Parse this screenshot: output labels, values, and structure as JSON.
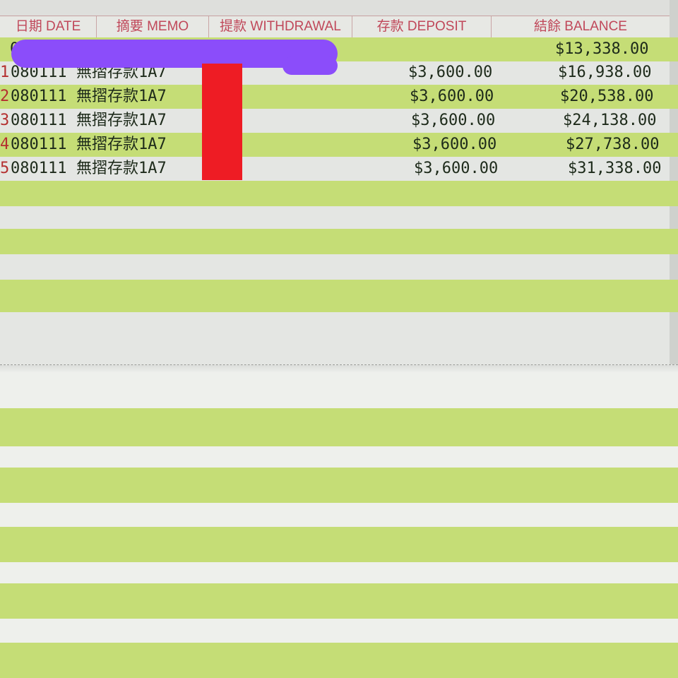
{
  "header": {
    "columns": [
      "日期 DATE",
      "摘要 MEMO",
      "提款 WITHDRAWAL",
      "存款 DEPOSIT",
      "結餘 BALANCE"
    ]
  },
  "rows": [
    {
      "num": "",
      "date": "01",
      "memo": "",
      "withdrawal": "",
      "deposit": "",
      "balance": "$13,338.00"
    },
    {
      "num": "1",
      "date": "080111",
      "memo": "無摺存款1A7",
      "withdrawal": "",
      "deposit": "$3,600.00",
      "balance": "$16,938.00"
    },
    {
      "num": "2",
      "date": "080111",
      "memo": "無摺存款1A7",
      "withdrawal": "",
      "deposit": "$3,600.00",
      "balance": "$20,538.00"
    },
    {
      "num": "3",
      "date": "080111",
      "memo": "無摺存款1A7",
      "withdrawal": "",
      "deposit": "$3,600.00",
      "balance": "$24,138.00"
    },
    {
      "num": "4",
      "date": "080111",
      "memo": "無摺存款1A7",
      "withdrawal": "",
      "deposit": "$3,600.00",
      "balance": "$27,738.00"
    },
    {
      "num": "5",
      "date": "080111",
      "memo": "無摺存款1A7",
      "withdrawal": "",
      "deposit": "$3,600.00",
      "balance": "$31,338.00"
    }
  ],
  "colors": {
    "stripe": "#c5dd76",
    "header_text": "#c0485a",
    "redaction_purple": "#8b4dfa",
    "redaction_red": "#ee1c24"
  }
}
